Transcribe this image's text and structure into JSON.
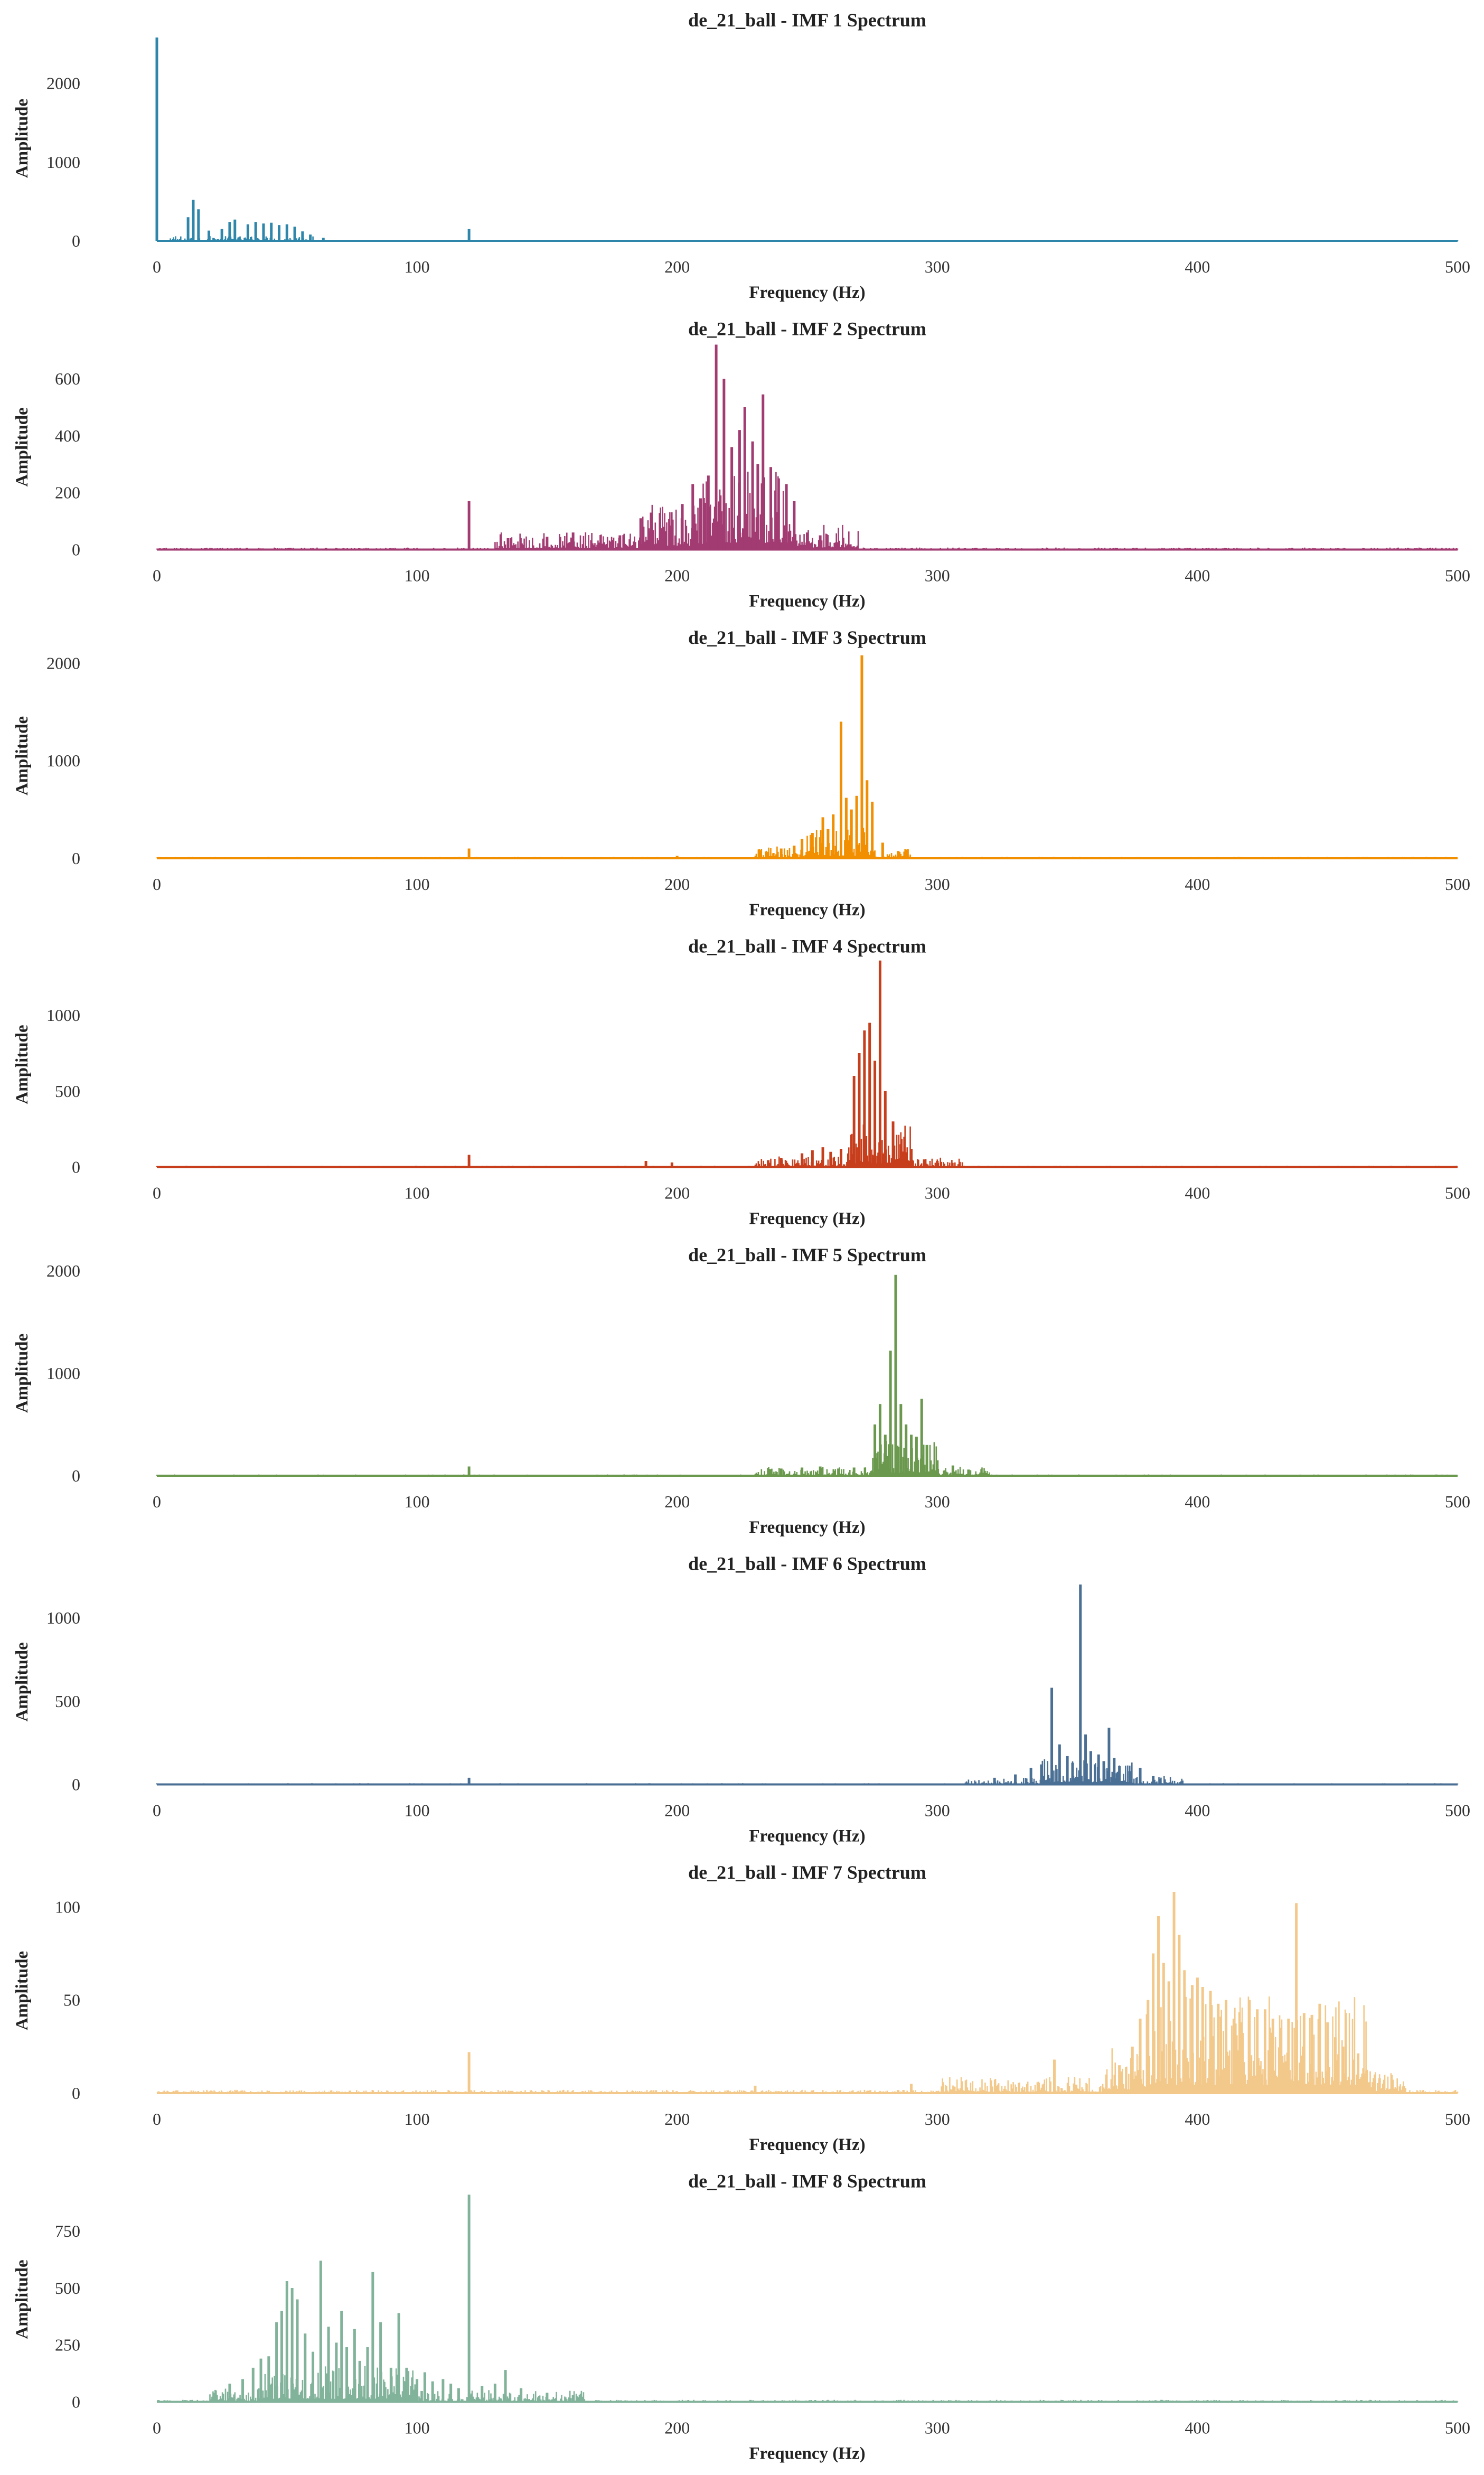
{
  "chart_data": [
    {
      "type": "line",
      "title": "de_21_ball - IMF 1 Spectrum",
      "xlabel": "Frequency (Hz)",
      "ylabel": "Amplitude",
      "xlim": [
        0,
        500
      ],
      "ylim": [
        0,
        2600
      ],
      "xticks": [
        0,
        100,
        200,
        300,
        400,
        500
      ],
      "yticks": [
        0,
        1000,
        2000
      ],
      "color": "#2e86ab",
      "grid": false,
      "noise": 6,
      "bands": [
        {
          "from": 5,
          "to": 60,
          "level": 35
        }
      ],
      "peaks": [
        [
          0,
          2580
        ],
        [
          12,
          300
        ],
        [
          14,
          520
        ],
        [
          16,
          400
        ],
        [
          20,
          130
        ],
        [
          25,
          150
        ],
        [
          28,
          240
        ],
        [
          30,
          270
        ],
        [
          35,
          210
        ],
        [
          38,
          240
        ],
        [
          41,
          220
        ],
        [
          44,
          230
        ],
        [
          47,
          200
        ],
        [
          50,
          210
        ],
        [
          53,
          180
        ],
        [
          56,
          120
        ],
        [
          59,
          80
        ],
        [
          64,
          40
        ],
        [
          120,
          150
        ]
      ]
    },
    {
      "type": "line",
      "title": "de_21_ball - IMF 2 Spectrum",
      "xlabel": "Frequency (Hz)",
      "ylabel": "Amplitude",
      "xlim": [
        0,
        500
      ],
      "ylim": [
        0,
        720
      ],
      "xticks": [
        0,
        100,
        200,
        300,
        400,
        500
      ],
      "yticks": [
        0,
        200,
        400,
        600
      ],
      "color": "#a23b72",
      "grid": false,
      "noise": 4,
      "bands": [
        {
          "from": 130,
          "to": 185,
          "level": 35
        },
        {
          "from": 185,
          "to": 210,
          "level": 90
        },
        {
          "from": 210,
          "to": 245,
          "level": 160
        },
        {
          "from": 245,
          "to": 270,
          "level": 50
        }
      ],
      "peaks": [
        [
          120,
          170
        ],
        [
          135,
          40
        ],
        [
          150,
          45
        ],
        [
          160,
          60
        ],
        [
          178,
          50
        ],
        [
          186,
          110
        ],
        [
          190,
          130
        ],
        [
          195,
          80
        ],
        [
          202,
          160
        ],
        [
          206,
          230
        ],
        [
          209,
          180
        ],
        [
          212,
          260
        ],
        [
          215,
          720
        ],
        [
          218,
          600
        ],
        [
          221,
          360
        ],
        [
          224,
          420
        ],
        [
          226,
          500
        ],
        [
          229,
          380
        ],
        [
          231,
          300
        ],
        [
          233,
          545
        ],
        [
          236,
          290
        ],
        [
          239,
          250
        ],
        [
          242,
          230
        ],
        [
          245,
          170
        ],
        [
          250,
          60
        ],
        [
          255,
          50
        ]
      ]
    },
    {
      "type": "line",
      "title": "de_21_ball - IMF 3 Spectrum",
      "xlabel": "Frequency (Hz)",
      "ylabel": "Amplitude",
      "xlim": [
        0,
        500
      ],
      "ylim": [
        0,
        2100
      ],
      "xticks": [
        0,
        100,
        200,
        300,
        400,
        500
      ],
      "yticks": [
        0,
        1000,
        2000
      ],
      "color": "#f18f01",
      "grid": false,
      "noise": 8,
      "bands": [
        {
          "from": 230,
          "to": 250,
          "level": 70
        },
        {
          "from": 250,
          "to": 275,
          "level": 180
        },
        {
          "from": 275,
          "to": 290,
          "level": 60
        }
      ],
      "peaks": [
        [
          120,
          100
        ],
        [
          200,
          25
        ],
        [
          235,
          60
        ],
        [
          240,
          100
        ],
        [
          245,
          130
        ],
        [
          248,
          200
        ],
        [
          252,
          260
        ],
        [
          256,
          420
        ],
        [
          258,
          300
        ],
        [
          260,
          450
        ],
        [
          263,
          1400
        ],
        [
          265,
          620
        ],
        [
          267,
          500
        ],
        [
          269,
          640
        ],
        [
          271,
          2080
        ],
        [
          273,
          800
        ],
        [
          275,
          580
        ],
        [
          279,
          160
        ],
        [
          285,
          60
        ]
      ]
    },
    {
      "type": "line",
      "title": "de_21_ball - IMF 4 Spectrum",
      "xlabel": "Frequency (Hz)",
      "ylabel": "Amplitude",
      "xlim": [
        0,
        500
      ],
      "ylim": [
        0,
        1350
      ],
      "xticks": [
        0,
        100,
        200,
        300,
        400,
        500
      ],
      "yticks": [
        0,
        500,
        1000
      ],
      "color": "#c73e1d",
      "grid": false,
      "noise": 5,
      "bands": [
        {
          "from": 230,
          "to": 265,
          "level": 40
        },
        {
          "from": 265,
          "to": 290,
          "level": 160
        },
        {
          "from": 290,
          "to": 310,
          "level": 35
        }
      ],
      "peaks": [
        [
          120,
          80
        ],
        [
          188,
          40
        ],
        [
          198,
          30
        ],
        [
          235,
          45
        ],
        [
          240,
          60
        ],
        [
          248,
          90
        ],
        [
          252,
          110
        ],
        [
          256,
          130
        ],
        [
          259,
          100
        ],
        [
          263,
          120
        ],
        [
          268,
          600
        ],
        [
          270,
          750
        ],
        [
          272,
          900
        ],
        [
          274,
          950
        ],
        [
          276,
          700
        ],
        [
          278,
          1360
        ],
        [
          280,
          500
        ],
        [
          283,
          300
        ],
        [
          286,
          150
        ],
        [
          290,
          120
        ],
        [
          295,
          50
        ],
        [
          300,
          40
        ]
      ]
    },
    {
      "type": "line",
      "title": "de_21_ball - IMF 5 Spectrum",
      "xlabel": "Frequency (Hz)",
      "ylabel": "Amplitude",
      "xlim": [
        0,
        500
      ],
      "ylim": [
        0,
        2000
      ],
      "xticks": [
        0,
        100,
        200,
        300,
        400,
        500
      ],
      "yticks": [
        0,
        1000,
        2000
      ],
      "color": "#6a994e",
      "grid": false,
      "noise": 7,
      "bands": [
        {
          "from": 230,
          "to": 275,
          "level": 50
        },
        {
          "from": 275,
          "to": 300,
          "level": 200
        },
        {
          "from": 300,
          "to": 320,
          "level": 50
        }
      ],
      "peaks": [
        [
          120,
          90
        ],
        [
          240,
          70
        ],
        [
          248,
          80
        ],
        [
          255,
          90
        ],
        [
          262,
          70
        ],
        [
          268,
          80
        ],
        [
          276,
          500
        ],
        [
          278,
          700
        ],
        [
          280,
          400
        ],
        [
          282,
          1220
        ],
        [
          284,
          1960
        ],
        [
          286,
          700
        ],
        [
          288,
          500
        ],
        [
          290,
          400
        ],
        [
          292,
          380
        ],
        [
          294,
          750
        ],
        [
          296,
          300
        ],
        [
          300,
          150
        ],
        [
          306,
          100
        ],
        [
          312,
          60
        ]
      ]
    },
    {
      "type": "line",
      "title": "de_21_ball - IMF 6 Spectrum",
      "xlabel": "Frequency (Hz)",
      "ylabel": "Amplitude",
      "xlim": [
        0,
        500
      ],
      "ylim": [
        0,
        1230
      ],
      "xticks": [
        0,
        100,
        200,
        300,
        400,
        500
      ],
      "yticks": [
        0,
        500,
        1000
      ],
      "color": "#4a6f94",
      "grid": false,
      "noise": 4,
      "bands": [
        {
          "from": 310,
          "to": 340,
          "level": 25
        },
        {
          "from": 340,
          "to": 375,
          "level": 90
        },
        {
          "from": 375,
          "to": 395,
          "level": 30
        }
      ],
      "peaks": [
        [
          120,
          40
        ],
        [
          322,
          40
        ],
        [
          330,
          60
        ],
        [
          336,
          100
        ],
        [
          340,
          120
        ],
        [
          344,
          580
        ],
        [
          347,
          240
        ],
        [
          350,
          170
        ],
        [
          352,
          130
        ],
        [
          355,
          1200
        ],
        [
          357,
          300
        ],
        [
          359,
          200
        ],
        [
          362,
          180
        ],
        [
          364,
          140
        ],
        [
          366,
          340
        ],
        [
          368,
          160
        ],
        [
          370,
          110
        ],
        [
          374,
          80
        ],
        [
          378,
          100
        ],
        [
          383,
          50
        ]
      ]
    },
    {
      "type": "line",
      "title": "de_21_ball - IMF 7 Spectrum",
      "xlabel": "Frequency (Hz)",
      "ylabel": "Amplitude",
      "xlim": [
        0,
        500
      ],
      "ylim": [
        0,
        110
      ],
      "xticks": [
        0,
        100,
        200,
        300,
        400,
        500
      ],
      "yticks": [
        0,
        50,
        100
      ],
      "color": "#f3c98b",
      "grid": false,
      "noise": 1,
      "bands": [
        {
          "from": 300,
          "to": 365,
          "level": 5
        },
        {
          "from": 365,
          "to": 380,
          "level": 14
        },
        {
          "from": 380,
          "to": 465,
          "level": 30
        },
        {
          "from": 465,
          "to": 480,
          "level": 8
        }
      ],
      "peaks": [
        [
          120,
          22
        ],
        [
          230,
          4
        ],
        [
          290,
          5
        ],
        [
          345,
          18
        ],
        [
          365,
          10
        ],
        [
          370,
          15
        ],
        [
          375,
          25
        ],
        [
          378,
          40
        ],
        [
          381,
          50
        ],
        [
          383,
          75
        ],
        [
          385,
          95
        ],
        [
          387,
          70
        ],
        [
          389,
          60
        ],
        [
          391,
          108
        ],
        [
          393,
          85
        ],
        [
          395,
          66
        ],
        [
          398,
          58
        ],
        [
          400,
          62
        ],
        [
          402,
          57
        ],
        [
          405,
          55
        ],
        [
          408,
          48
        ],
        [
          411,
          50
        ],
        [
          414,
          40
        ],
        [
          417,
          38
        ],
        [
          420,
          50
        ],
        [
          423,
          45
        ],
        [
          426,
          45
        ],
        [
          429,
          40
        ],
        [
          432,
          35
        ],
        [
          435,
          40
        ],
        [
          438,
          102
        ],
        [
          441,
          43
        ],
        [
          444,
          42
        ],
        [
          447,
          48
        ],
        [
          450,
          38
        ],
        [
          453,
          30
        ],
        [
          456,
          25
        ],
        [
          460,
          18
        ],
        [
          465,
          12
        ],
        [
          470,
          8
        ]
      ]
    },
    {
      "type": "line",
      "title": "de_21_ball - IMF 8 Spectrum",
      "xlabel": "Frequency (Hz)",
      "ylabel": "Amplitude",
      "xlim": [
        0,
        500
      ],
      "ylim": [
        0,
        900
      ],
      "xticks": [
        0,
        100,
        200,
        300,
        400,
        500
      ],
      "yticks": [
        0,
        250,
        500,
        750
      ],
      "color": "#81b29a",
      "grid": false,
      "noise": 5,
      "bands": [
        {
          "from": 20,
          "to": 40,
          "level": 35
        },
        {
          "from": 40,
          "to": 100,
          "level": 90
        },
        {
          "from": 100,
          "to": 165,
          "level": 30
        }
      ],
      "peaks": [
        [
          28,
          80
        ],
        [
          33,
          100
        ],
        [
          37,
          150
        ],
        [
          40,
          190
        ],
        [
          43,
          200
        ],
        [
          46,
          350
        ],
        [
          48,
          400
        ],
        [
          50,
          530
        ],
        [
          52,
          500
        ],
        [
          54,
          450
        ],
        [
          57,
          300
        ],
        [
          60,
          220
        ],
        [
          63,
          620
        ],
        [
          66,
          330
        ],
        [
          69,
          260
        ],
        [
          71,
          400
        ],
        [
          73,
          240
        ],
        [
          76,
          320
        ],
        [
          78,
          180
        ],
        [
          81,
          240
        ],
        [
          83,
          570
        ],
        [
          86,
          350
        ],
        [
          90,
          150
        ],
        [
          93,
          390
        ],
        [
          96,
          150
        ],
        [
          100,
          100
        ],
        [
          103,
          130
        ],
        [
          106,
          90
        ],
        [
          110,
          100
        ],
        [
          113,
          80
        ],
        [
          116,
          60
        ],
        [
          120,
          910
        ],
        [
          125,
          70
        ],
        [
          130,
          80
        ],
        [
          134,
          140
        ],
        [
          140,
          60
        ],
        [
          150,
          40
        ],
        [
          160,
          30
        ]
      ]
    }
  ]
}
